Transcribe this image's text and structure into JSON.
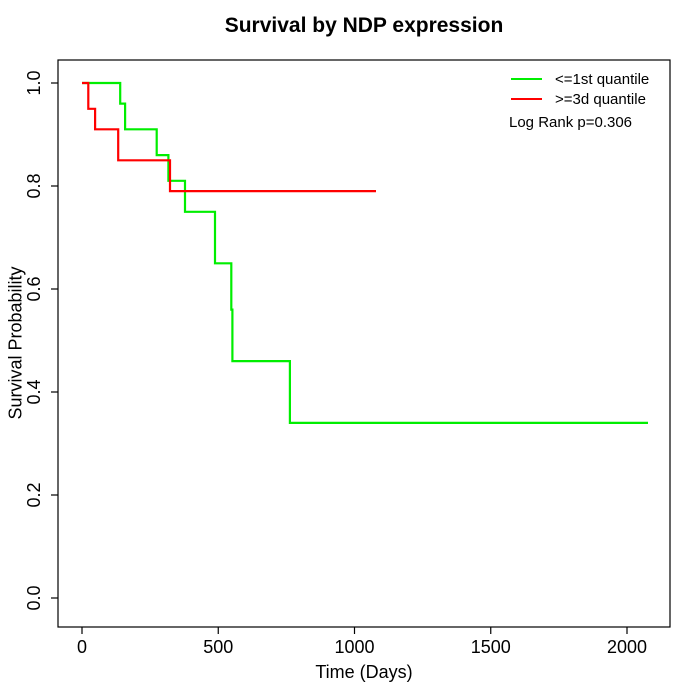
{
  "chart_data": {
    "type": "line",
    "subtype": "kaplan-meier-step-curve",
    "title": "Survival by NDP expression",
    "xlabel": "Time (Days)",
    "ylabel": "Survival Probability",
    "xlim": [
      0,
      2160
    ],
    "ylim": [
      0,
      1.0
    ],
    "x_ticks": [
      "0",
      "500",
      "1000",
      "1500",
      "2000"
    ],
    "y_ticks": [
      "0.0",
      "0.2",
      "0.4",
      "0.6",
      "0.8",
      "1.0"
    ],
    "grid": false,
    "legend_position": "top-right",
    "frame": true,
    "series": [
      {
        "name": "<=1st quantile",
        "color": "#00ee00",
        "steps": [
          [
            0,
            1.0
          ],
          [
            140,
            0.96
          ],
          [
            158,
            0.91
          ],
          [
            274,
            0.86
          ],
          [
            317,
            0.81
          ],
          [
            378,
            0.75
          ],
          [
            488,
            0.65
          ],
          [
            548,
            0.56
          ],
          [
            552,
            0.46
          ],
          [
            763,
            0.34
          ]
        ],
        "end_x": 2077
      },
      {
        "name": ">=3d quantile",
        "color": "#ff0000",
        "steps": [
          [
            0,
            1.0
          ],
          [
            23,
            0.95
          ],
          [
            48,
            0.91
          ],
          [
            133,
            0.85
          ],
          [
            323,
            0.79
          ]
        ],
        "end_x": 1079
      }
    ],
    "annotation": "Log Rank p=0.306"
  },
  "legend": {
    "items": [
      {
        "label": "<=1st quantile",
        "color": "#00ee00"
      },
      {
        "label": ">=3d quantile",
        "color": "#ff0000"
      }
    ],
    "annotation": "Log Rank p=0.306"
  }
}
